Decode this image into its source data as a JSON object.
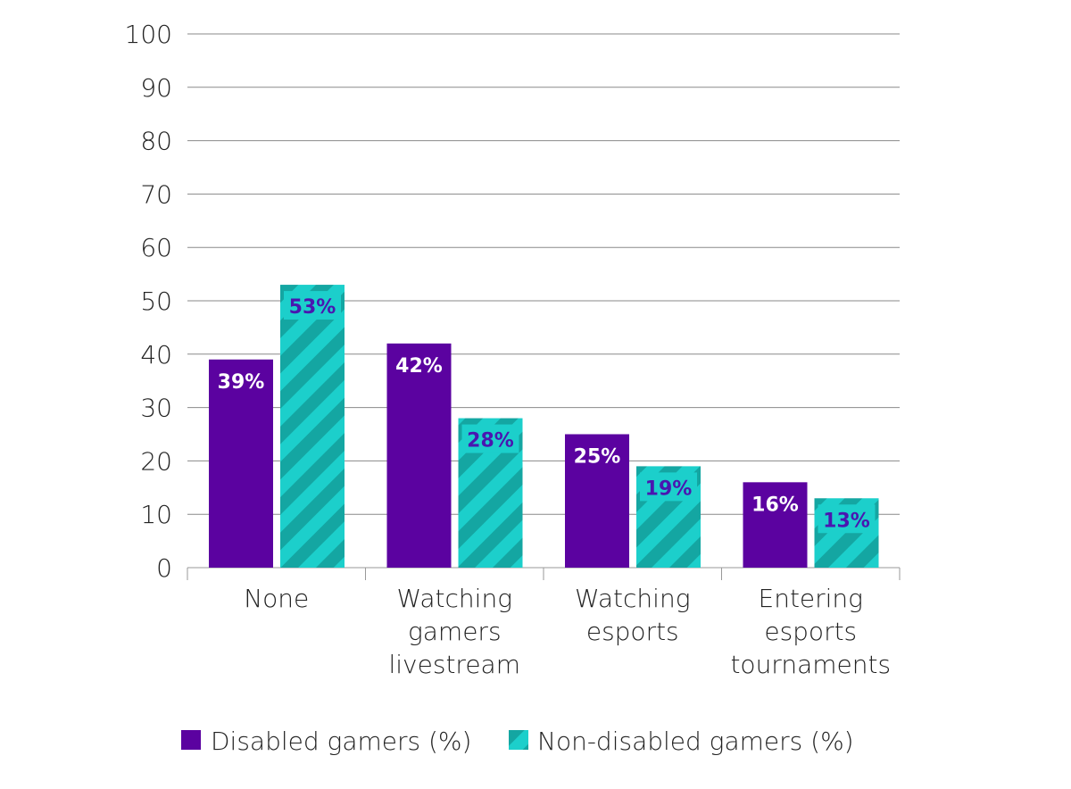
{
  "chart_data": {
    "type": "bar",
    "title": "",
    "xlabel": "",
    "ylabel": "",
    "ylim": [
      0,
      100
    ],
    "yticks": [
      0,
      10,
      20,
      30,
      40,
      50,
      60,
      70,
      80,
      90,
      100
    ],
    "grid": true,
    "categories": [
      [
        "None"
      ],
      [
        "Watching",
        "gamers",
        "livestream"
      ],
      [
        "Watching",
        "esports"
      ],
      [
        "Entering",
        "esports",
        "tournaments"
      ]
    ],
    "series": [
      {
        "name": "Disabled gamers (%)",
        "values": [
          39,
          42,
          25,
          16
        ],
        "labels": [
          "39%",
          "42%",
          "25%",
          "16%"
        ],
        "color": "#5b02a0",
        "pattern": "solid"
      },
      {
        "name": "Non-disabled gamers (%)",
        "values": [
          53,
          28,
          19,
          13
        ],
        "labels": [
          "53%",
          "28%",
          "19%",
          "13%"
        ],
        "color": "#1ccfcb",
        "stripe_color": "#14a6a2",
        "pattern": "diagonal-stripes"
      }
    ],
    "legend_position": "bottom"
  }
}
